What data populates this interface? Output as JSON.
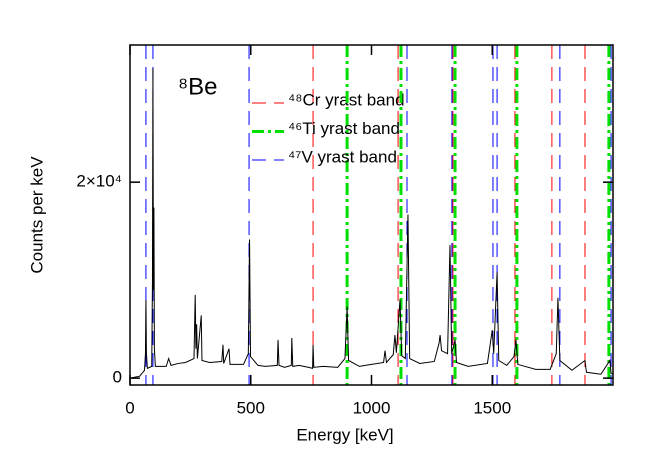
{
  "chart_data": {
    "type": "line",
    "xlabel": "Energy [keV]",
    "ylabel": "Counts per keV",
    "annotation": "⁸Be",
    "xlim": [
      0,
      2000
    ],
    "ylim": [
      -700,
      34000
    ],
    "xticks": [
      0,
      500,
      1000,
      1500
    ],
    "yticks": [
      0,
      {
        "value": 20000,
        "label": "2×10⁴"
      }
    ],
    "x": [
      0,
      40,
      60,
      64,
      66,
      68,
      72,
      90,
      93,
      95,
      97,
      99,
      101,
      105,
      150,
      160,
      170,
      200,
      230,
      265,
      270,
      273,
      276,
      279,
      295,
      298,
      330,
      380,
      385,
      388,
      410,
      414,
      470,
      490,
      495,
      499,
      530,
      560,
      610,
      613,
      617,
      640,
      668,
      670,
      674,
      700,
      740,
      756,
      758,
      761,
      800,
      860,
      890,
      899,
      905,
      950,
      1000,
      1050,
      1056,
      1062,
      1090,
      1097,
      1103,
      1118,
      1125,
      1140,
      1151,
      1158,
      1200,
      1260,
      1280,
      1284,
      1290,
      1315,
      1325,
      1332,
      1346,
      1352,
      1400,
      1480,
      1500,
      1506,
      1520,
      1527,
      1560,
      1590,
      1598,
      1606,
      1680,
      1740,
      1765,
      1772,
      1780,
      1830,
      1884,
      1890,
      1950,
      1987,
      1992,
      2000
    ],
    "series": [
      {
        "color": "#000000",
        "values": [
          0,
          200,
          800,
          2500,
          8000,
          2500,
          1000,
          1200,
          10000,
          31600,
          9000,
          17400,
          3000,
          1200,
          1200,
          2000,
          1300,
          1500,
          1600,
          2000,
          8500,
          3000,
          5500,
          2000,
          6400,
          1800,
          1600,
          1700,
          3400,
          1500,
          3000,
          1400,
          1400,
          2500,
          14150,
          2200,
          1300,
          1200,
          1300,
          3900,
          1300,
          1100,
          1300,
          4100,
          1200,
          1300,
          1100,
          1000,
          3400,
          1100,
          1200,
          1100,
          2000,
          7300,
          1800,
          1200,
          1400,
          1600,
          2800,
          1600,
          2400,
          4400,
          2600,
          8000,
          2300,
          2000,
          16700,
          2000,
          1500,
          1700,
          3600,
          4400,
          2800,
          2500,
          13600,
          2500,
          3900,
          1600,
          1200,
          1500,
          4900,
          2500,
          10800,
          1800,
          1300,
          2200,
          3900,
          1400,
          900,
          900,
          2500,
          8200,
          1800,
          800,
          1800,
          600,
          400,
          1800,
          500,
          400
        ]
      }
    ],
    "bands": [
      {
        "name": "⁴⁸Cr yrast band",
        "color": "#ff0000",
        "style": "dash",
        "x": [
          758,
          1110,
          1337,
          1594,
          1747,
          1884
        ]
      },
      {
        "name": "⁴⁶Ti yrast band",
        "color": "#00e000",
        "style": "dashdot",
        "x": [
          899,
          1122,
          1346,
          1602,
          1983
        ]
      },
      {
        "name": "⁴⁷V yrast band",
        "color": "#0000ff",
        "style": "dash",
        "x": [
          66,
          95,
          493,
          1147,
          1333,
          1503,
          1520,
          1780,
          1992
        ]
      }
    ]
  }
}
